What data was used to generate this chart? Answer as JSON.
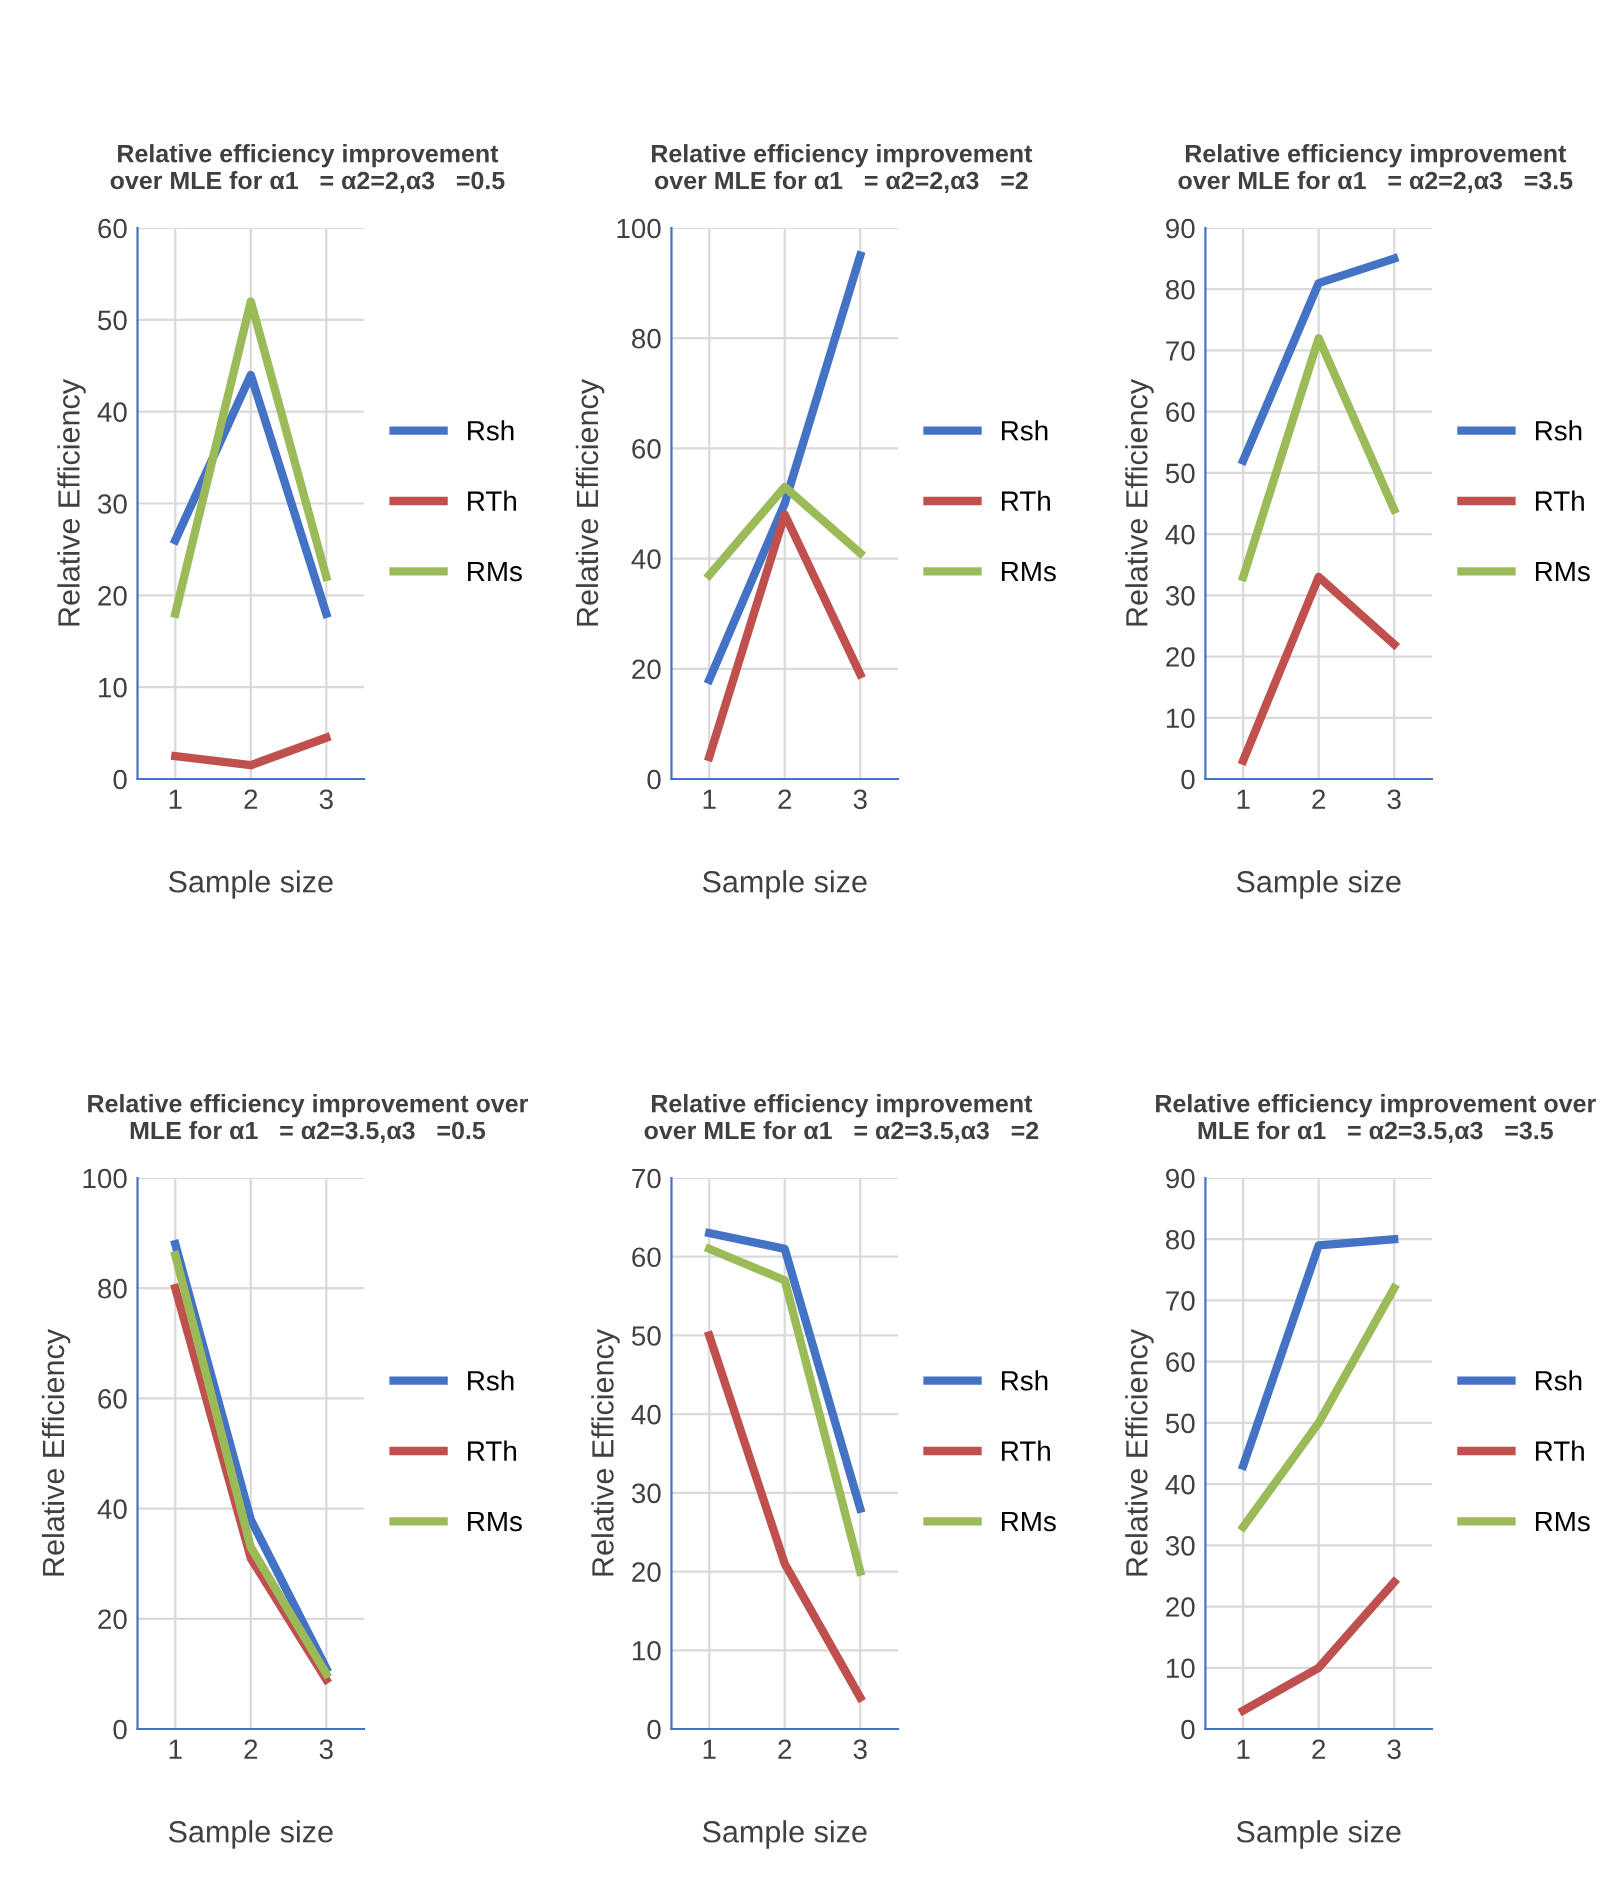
{
  "chart_data": [
    {
      "type": "line",
      "title": "Relative efficiency improvement\nover MLE for α1   = α2=2,α3   =0.5",
      "xlabel": "Sample size",
      "ylabel": "Relative Efficiency",
      "categories": [
        "1",
        "2",
        "3"
      ],
      "ylim": [
        0,
        60
      ],
      "yticks": [
        0,
        10,
        20,
        30,
        40,
        50,
        60
      ],
      "grid": true,
      "legend": "right",
      "series": [
        {
          "name": "Rsh",
          "color": "#4472c4",
          "values": [
            26,
            44,
            18
          ]
        },
        {
          "name": "RTh",
          "color": "#c0504d",
          "values": [
            2.5,
            1.5,
            4.5
          ]
        },
        {
          "name": "RMs",
          "color": "#9bbb59",
          "values": [
            18,
            52,
            22
          ]
        }
      ]
    },
    {
      "type": "line",
      "title": "Relative efficiency improvement\nover MLE for α1   = α2=2,α3   =2",
      "xlabel": "Sample size",
      "ylabel": "Relative Efficiency",
      "categories": [
        "1",
        "2",
        "3"
      ],
      "ylim": [
        0,
        100
      ],
      "yticks": [
        0,
        20,
        40,
        60,
        80,
        100
      ],
      "grid": true,
      "legend": "right",
      "series": [
        {
          "name": "Rsh",
          "color": "#4472c4",
          "values": [
            18,
            50,
            95
          ]
        },
        {
          "name": "RTh",
          "color": "#c0504d",
          "values": [
            4,
            48,
            19
          ]
        },
        {
          "name": "RMs",
          "color": "#9bbb59",
          "values": [
            37,
            53,
            41
          ]
        }
      ]
    },
    {
      "type": "line",
      "title": "Relative efficiency improvement\nover MLE for α1   = α2=2,α3   =3.5",
      "xlabel": "Sample size",
      "ylabel": "Relative Efficiency",
      "categories": [
        "1",
        "2",
        "3"
      ],
      "ylim": [
        0,
        90
      ],
      "yticks": [
        0,
        10,
        20,
        30,
        40,
        50,
        60,
        70,
        80,
        90
      ],
      "grid": true,
      "legend": "right",
      "series": [
        {
          "name": "Rsh",
          "color": "#4472c4",
          "values": [
            52,
            81,
            85
          ]
        },
        {
          "name": "RTh",
          "color": "#c0504d",
          "values": [
            3,
            33,
            22
          ]
        },
        {
          "name": "RMs",
          "color": "#9bbb59",
          "values": [
            33,
            72,
            44
          ]
        }
      ]
    },
    {
      "type": "line",
      "title": "Relative efficiency improvement over\nMLE for α1   = α2=3.5,α3   =0.5",
      "xlabel": "Sample size",
      "ylabel": "Relative Efficiency",
      "categories": [
        "1",
        "2",
        "3"
      ],
      "ylim": [
        0,
        100
      ],
      "yticks": [
        0,
        20,
        40,
        60,
        80,
        100
      ],
      "grid": true,
      "legend": "right",
      "series": [
        {
          "name": "Rsh",
          "color": "#4472c4",
          "values": [
            88,
            38,
            11
          ]
        },
        {
          "name": "RTh",
          "color": "#c0504d",
          "values": [
            80,
            31,
            9
          ]
        },
        {
          "name": "RMs",
          "color": "#9bbb59",
          "values": [
            86,
            33,
            10
          ]
        }
      ]
    },
    {
      "type": "line",
      "title": "Relative efficiency improvement\nover MLE for α1   = α2=3.5,α3   =2",
      "xlabel": "Sample size",
      "ylabel": "Relative Efficiency",
      "categories": [
        "1",
        "2",
        "3"
      ],
      "ylim": [
        0,
        70
      ],
      "yticks": [
        0,
        10,
        20,
        30,
        40,
        50,
        60,
        70
      ],
      "grid": true,
      "legend": "right",
      "series": [
        {
          "name": "Rsh",
          "color": "#4472c4",
          "values": [
            63,
            61,
            28
          ]
        },
        {
          "name": "RTh",
          "color": "#c0504d",
          "values": [
            50,
            21,
            4
          ]
        },
        {
          "name": "RMs",
          "color": "#9bbb59",
          "values": [
            61,
            57,
            20
          ]
        }
      ]
    },
    {
      "type": "line",
      "title": "Relative efficiency improvement over\nMLE for α1   = α2=3.5,α3   =3.5",
      "xlabel": "Sample size",
      "ylabel": "Relative Efficiency",
      "categories": [
        "1",
        "2",
        "3"
      ],
      "ylim": [
        0,
        90
      ],
      "yticks": [
        0,
        10,
        20,
        30,
        40,
        50,
        60,
        70,
        80,
        90
      ],
      "grid": true,
      "legend": "right",
      "series": [
        {
          "name": "Rsh",
          "color": "#4472c4",
          "values": [
            43,
            79,
            80
          ]
        },
        {
          "name": "RTh",
          "color": "#c0504d",
          "values": [
            3,
            10,
            24
          ]
        },
        {
          "name": "RMs",
          "color": "#9bbb59",
          "values": [
            33,
            50,
            72
          ]
        }
      ]
    }
  ]
}
